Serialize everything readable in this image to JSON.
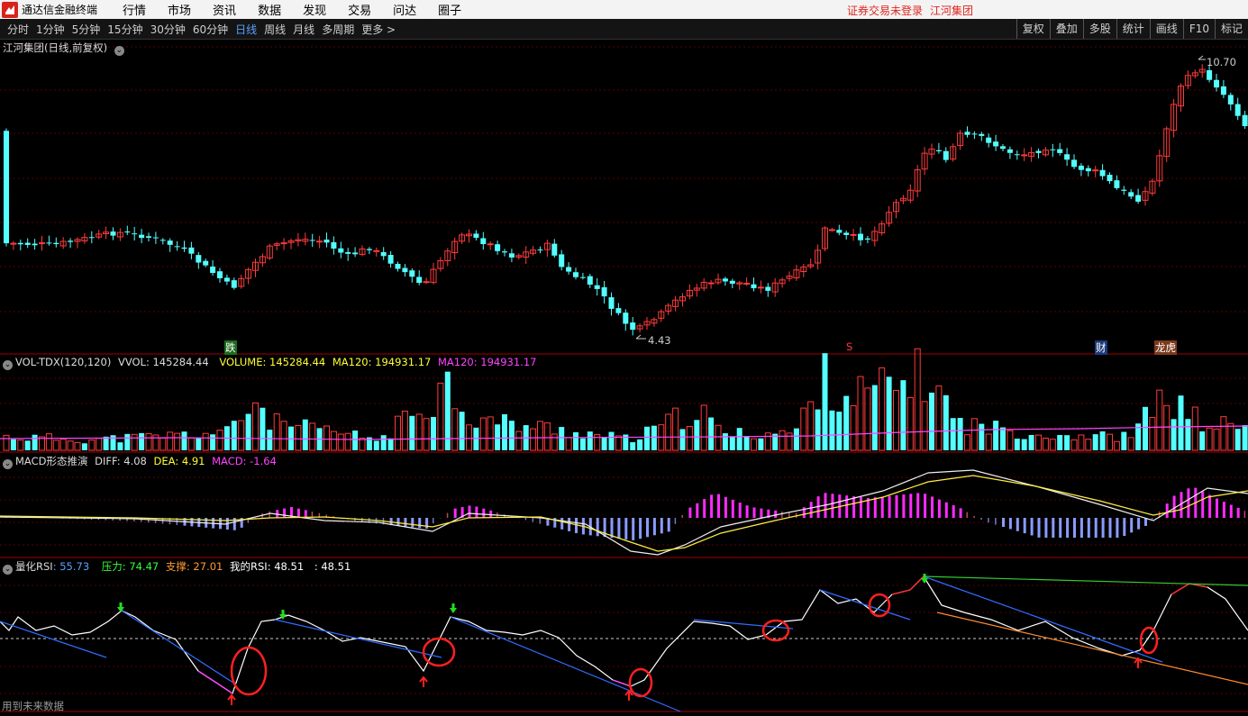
{
  "menubar": {
    "app_title": "通达信金融终端",
    "items": [
      "行情",
      "市场",
      "资讯",
      "数据",
      "发现",
      "交易",
      "问达",
      "圈子"
    ],
    "login_status": "证券交易未登录",
    "stock_name": "江河集团"
  },
  "toolbar": {
    "periods": [
      "分时",
      "1分钟",
      "5分钟",
      "15分钟",
      "30分钟",
      "60分钟",
      "日线",
      "周线",
      "月线",
      "多周期",
      "更多 >"
    ],
    "active_period": "日线",
    "right": [
      "复权",
      "叠加",
      "多股",
      "统计",
      "画线",
      "F10",
      "标记"
    ]
  },
  "main_chart": {
    "title": "江河集团(日线,前复权)",
    "high_label": "10.70",
    "low_label": "4.43",
    "markers": [
      "跌",
      "S",
      "财",
      "龙虎"
    ],
    "colors": {
      "up": "#ff3b3b",
      "down": "#54ffff"
    }
  },
  "vol": {
    "name": "VOL-TDX(120,120)",
    "vvol_label": "VVOL: 145284.44",
    "volume_label": "VOLUME: 145284.44",
    "ma120_label": "MA120: 194931.17",
    "ma120b_label": "MA120: 194931.17"
  },
  "macd": {
    "name": "MACD形态推演",
    "diff_label": "DIFF: 4.08",
    "dea_label": "DEA: 4.91",
    "macd_label": "MACD: -1.64"
  },
  "rsi": {
    "name_prefix": "量化RSI",
    "value": ": 55.73",
    "pressure_label": "压力: 74.47",
    "support_label": "支撑: 27.01",
    "my_rsi_label": "我的RSI: 48.51",
    "extra_label": ": 48.51"
  },
  "footer_note": "用到未来数据"
}
